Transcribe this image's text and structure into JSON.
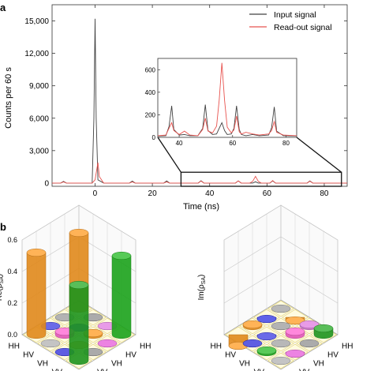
{
  "panels": {
    "a": {
      "label": "a",
      "chart_data": {
        "type": "line",
        "xlabel": "Time (ns)",
        "ylabel": "Counts per 60 s",
        "xlim": [
          -15,
          88
        ],
        "ylim": [
          -300,
          16500
        ],
        "xticks": [
          0,
          20,
          40,
          60,
          80
        ],
        "yticks": [
          0,
          3000,
          6000,
          9000,
          12000,
          15000
        ],
        "ytick_labels": [
          "0",
          "3,000",
          "6,000",
          "9,000",
          "12,000",
          "15,000"
        ],
        "legend": [
          "Input signal",
          "Read-out signal"
        ],
        "legend_position": "top-right",
        "series": [
          {
            "name": "Input signal",
            "color": "#404040",
            "x": [
              -15,
              -12,
              -11,
              -10,
              -4,
              -1,
              -0.4,
              0,
              0.4,
              1,
              3,
              12,
              13,
              14,
              24,
              25,
              26,
              36,
              37,
              38,
              49,
              50,
              51,
              55,
              56,
              57,
              61,
              62,
              63,
              74,
              75,
              76,
              88
            ],
            "y": [
              0,
              0,
              150,
              0,
              0,
              0,
              6000,
              15200,
              6000,
              300,
              0,
              0,
              180,
              0,
              0,
              200,
              0,
              0,
              220,
              0,
              0,
              200,
              0,
              0,
              120,
              0,
              0,
              200,
              0,
              0,
              200,
              0,
              0
            ]
          },
          {
            "name": "Read-out signal",
            "color": "#e8534f",
            "x": [
              -15,
              -12,
              -11,
              -10,
              -4,
              -1,
              0,
              0.5,
              1,
              1.5,
              3,
              12,
              13,
              14,
              24,
              25,
              26,
              36,
              37,
              38,
              49,
              50,
              51,
              54,
              55,
              56,
              57,
              58,
              61,
              62,
              63,
              74,
              75,
              76,
              88
            ],
            "y": [
              0,
              0,
              100,
              0,
              0,
              0,
              300,
              1100,
              1900,
              600,
              0,
              0,
              100,
              0,
              0,
              100,
              0,
              0,
              180,
              0,
              0,
              200,
              0,
              0,
              150,
              620,
              150,
              0,
              0,
              230,
              0,
              0,
              170,
              0,
              0
            ]
          }
        ]
      },
      "inset": {
        "chart_data": {
          "type": "line",
          "xlim": [
            32,
            84
          ],
          "ylim": [
            0,
            700
          ],
          "xticks": [
            40,
            60,
            80
          ],
          "yticks": [
            0,
            200,
            400,
            600
          ],
          "series": [
            {
              "name": "Input signal",
              "color": "#404040",
              "x": [
                32,
                35,
                36.2,
                37.2,
                38,
                40,
                42,
                44,
                47,
                48.8,
                49.8,
                50.8,
                52.5,
                54,
                55,
                56,
                57,
                58,
                59.5,
                60.5,
                61.5,
                62.5,
                63.3,
                65,
                67.5,
                70,
                73.5,
                74.6,
                75.6,
                76.5,
                79,
                84
              ],
              "y": [
                12,
                15,
                95,
                280,
                70,
                20,
                25,
                15,
                15,
                80,
                290,
                60,
                25,
                30,
                80,
                130,
                60,
                25,
                30,
                80,
                280,
                70,
                25,
                15,
                25,
                15,
                20,
                85,
                270,
                55,
                15,
                12
              ]
            },
            {
              "name": "Read-out signal",
              "color": "#e8534f",
              "x": [
                32,
                35,
                36.2,
                37.2,
                38,
                40,
                42,
                44,
                47,
                48.8,
                49.8,
                50.8,
                52.5,
                54,
                55,
                56,
                57,
                58,
                59.5,
                60.5,
                61.5,
                62.5,
                63.3,
                65,
                67.5,
                70,
                73.5,
                74.6,
                75.6,
                76.5,
                79,
                84
              ],
              "y": [
                15,
                20,
                80,
                130,
                60,
                25,
                55,
                20,
                15,
                70,
                170,
                55,
                40,
                100,
                330,
                660,
                330,
                90,
                40,
                65,
                190,
                50,
                30,
                45,
                30,
                20,
                30,
                60,
                140,
                45,
                20,
                15
              ]
            }
          ]
        }
      },
      "zoom_window": {
        "x": [
          30,
          86
        ],
        "y": [
          -300,
          1000
        ]
      }
    },
    "b": {
      "label": "b",
      "charts": [
        {
          "zlabel": "Re(ρ",
          "zlabel_sub": "SA",
          "zlabel_tail": ")",
          "zticks": [
            0.0,
            0.2,
            0.4,
            0.6
          ],
          "ztick_labels": [
            "0.0",
            "0.2",
            "0.4",
            "0.6"
          ],
          "row_labels": [
            "HH",
            "HV",
            "VH",
            "VV"
          ],
          "col_labels": [
            "HH",
            "HV",
            "VH",
            "VV"
          ],
          "chart_data": {
            "type": "bar3d",
            "rows": [
              "HH",
              "HV",
              "VH",
              "VV"
            ],
            "cols": [
              "HH",
              "HV",
              "VH",
              "VV"
            ],
            "values": [
              [
                0.48,
                0.0,
                0.0,
                0.5
              ],
              [
                0.0,
                -0.01,
                0.01,
                0.0
              ],
              [
                0.0,
                0.02,
                -0.01,
                0.0
              ],
              [
                0.52,
                0.0,
                0.0,
                0.48
              ]
            ],
            "colors": [
              [
                "#ff9a1f",
                "#8f8f8f",
                "#e07ae0",
                "#1fb81f"
              ],
              [
                "#9a9a9a",
                "#2a2ee0",
                "#ff9a1f",
                "#e65ad8"
              ],
              [
                "#3a3ae0",
                "#ff5fd0",
                "#ffa020",
                "#8e8e8e"
              ],
              [
                "#ff9a1f",
                "#b0b0b0",
                "#2828d8",
                "#22a822"
              ]
            ]
          }
        },
        {
          "zlabel": "Im(ρ",
          "zlabel_sub": "SA",
          "zlabel_tail": ")",
          "zticks": [
            0.0,
            0.2,
            0.4,
            0.6
          ],
          "ztick_labels": [
            "",
            "",
            "",
            ""
          ],
          "row_labels": [
            "HH",
            "HV",
            "VH",
            "VV"
          ],
          "col_labels": [
            "HH",
            "HV",
            "VH",
            "VV"
          ],
          "chart_data": {
            "type": "bar3d",
            "rows": [
              "HH",
              "HV",
              "VH",
              "VV"
            ],
            "cols": [
              "HH",
              "HV",
              "VH",
              "VV"
            ],
            "values": [
              [
                0.0,
                -0.02,
                0.01,
                0.04
              ],
              [
                -0.01,
                0.0,
                0.02,
                0.0
              ],
              [
                0.01,
                -0.01,
                0.0,
                -0.01
              ],
              [
                -0.07,
                0.0,
                0.01,
                0.0
              ]
            ],
            "colors": [
              [
                "#a0a0a0",
                "#ff9a1f",
                "#e07ae0",
                "#22a822"
              ],
              [
                "#2a2ee0",
                "#9a9a9a",
                "#ff5fd0",
                "#8f8f8f"
              ],
              [
                "#ff9a1f",
                "#3a3ae0",
                "#a0a0a0",
                "#e65ad8"
              ],
              [
                "#ff9a1f",
                "#2828d8",
                "#22b822",
                "#b0b0b0"
              ]
            ]
          }
        }
      ]
    }
  }
}
